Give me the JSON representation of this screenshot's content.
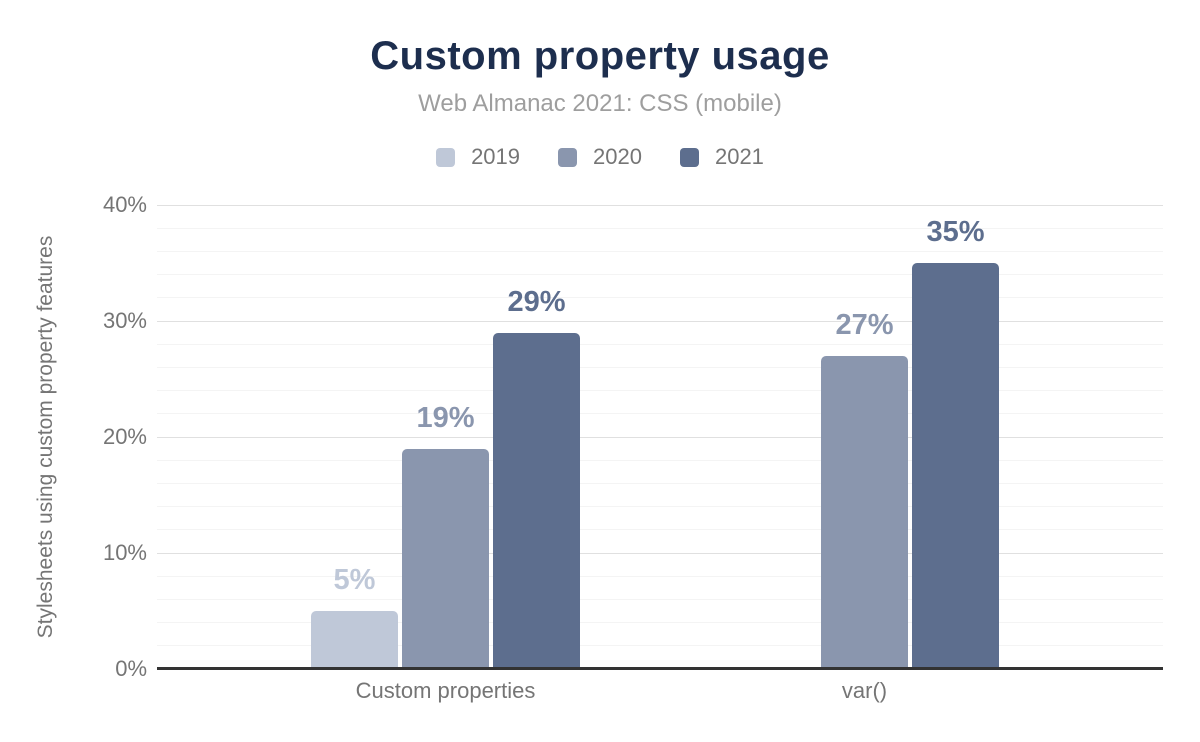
{
  "chart_data": {
    "type": "bar",
    "title": "Custom property usage",
    "subtitle": "Web Almanac 2021: CSS (mobile)",
    "xlabel": "",
    "ylabel": "Stylesheets using custom property features",
    "categories": [
      "Custom properties",
      "var()"
    ],
    "series": [
      {
        "name": "2019",
        "color": "#bfc8d8",
        "values": [
          5,
          null
        ],
        "labels": [
          "5%",
          null
        ]
      },
      {
        "name": "2020",
        "color": "#8a96ae",
        "values": [
          19,
          27
        ],
        "labels": [
          "19%",
          "27%"
        ]
      },
      {
        "name": "2021",
        "color": "#5d6e8e",
        "values": [
          29,
          35
        ],
        "labels": [
          "29%",
          "35%"
        ]
      }
    ],
    "value_suffix": "%",
    "ylim": [
      0,
      40
    ],
    "ytick_step": 10,
    "yminor_step": 2,
    "ytick_labels": [
      "0%",
      "10%",
      "20%",
      "30%",
      "40%"
    ],
    "grid": true,
    "legend_position": "top"
  },
  "style": {
    "title_color": "#1d2e4e",
    "subtitle_color": "#9e9e9e",
    "axis_text_color": "#757575",
    "axis_line_color": "#333333",
    "grid_major_color": "#e0e0e0",
    "grid_minor_color": "#f4f4f4",
    "background": "#ffffff"
  }
}
